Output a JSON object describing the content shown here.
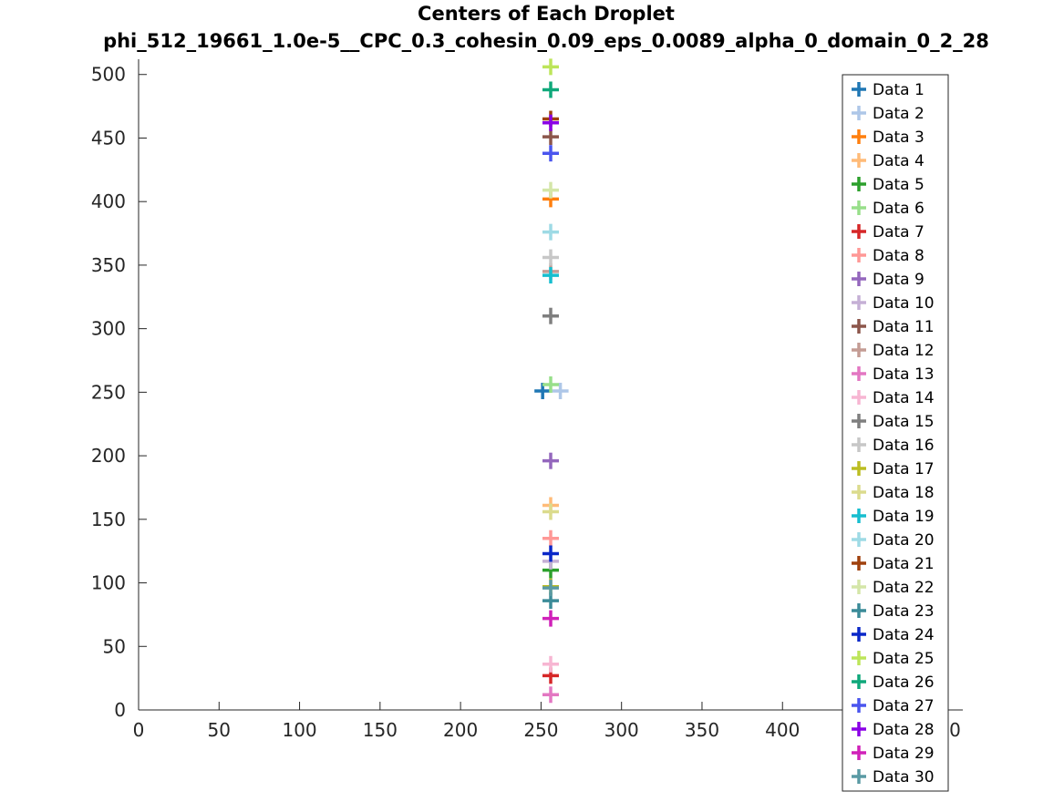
{
  "chart_data": {
    "type": "scatter",
    "title": "Centers of Each Droplet",
    "subtitle": "phi_512_19661_1.0e-5__CPC_0.3_cohesin_0.09_eps_0.0089_alpha_0_domain_0_2_28",
    "xlabel": "",
    "ylabel": "",
    "xlim": [
      0,
      512
    ],
    "ylim": [
      0,
      512
    ],
    "x_ticks": [
      0,
      50,
      100,
      150,
      200,
      250,
      300,
      350,
      400,
      450,
      500
    ],
    "x_tick_labels": [
      "0",
      "50",
      "100",
      "150",
      "200",
      "250",
      "300",
      "350",
      "400",
      "450",
      "500"
    ],
    "y_ticks": [
      0,
      50,
      100,
      150,
      200,
      250,
      300,
      350,
      400,
      450,
      500
    ],
    "y_tick_labels": [
      "0",
      "50",
      "100",
      "150",
      "200",
      "250",
      "300",
      "350",
      "400",
      "450",
      "500"
    ],
    "grid": false,
    "legend_position": "right",
    "marker": "plus",
    "series": [
      {
        "name": "Data 1",
        "color": "#1f77b4",
        "x": [
          251
        ],
        "y": [
          251
        ]
      },
      {
        "name": "Data 2",
        "color": "#aec7e8",
        "x": [
          262
        ],
        "y": [
          251
        ]
      },
      {
        "name": "Data 3",
        "color": "#ff7f0e",
        "x": [
          256
        ],
        "y": [
          402
        ]
      },
      {
        "name": "Data 4",
        "color": "#ffbb78",
        "x": [
          256
        ],
        "y": [
          161
        ]
      },
      {
        "name": "Data 5",
        "color": "#2ca02c",
        "x": [
          256
        ],
        "y": [
          110
        ]
      },
      {
        "name": "Data 6",
        "color": "#98df8a",
        "x": [
          256
        ],
        "y": [
          256
        ]
      },
      {
        "name": "Data 7",
        "color": "#d62728",
        "x": [
          256
        ],
        "y": [
          27
        ]
      },
      {
        "name": "Data 8",
        "color": "#ff9896",
        "x": [
          256
        ],
        "y": [
          135
        ]
      },
      {
        "name": "Data 9",
        "color": "#9467bd",
        "x": [
          256
        ],
        "y": [
          196
        ]
      },
      {
        "name": "Data 10",
        "color": "#c5b0d5",
        "x": [
          256
        ],
        "y": [
          117
        ]
      },
      {
        "name": "Data 11",
        "color": "#8c564b",
        "x": [
          256
        ],
        "y": [
          451
        ]
      },
      {
        "name": "Data 12",
        "color": "#c49c94",
        "x": [
          256
        ],
        "y": [
          345
        ]
      },
      {
        "name": "Data 13",
        "color": "#e377c2",
        "x": [
          256
        ],
        "y": [
          12
        ]
      },
      {
        "name": "Data 14",
        "color": "#f7b6d2",
        "x": [
          256
        ],
        "y": [
          36
        ]
      },
      {
        "name": "Data 15",
        "color": "#7f7f7f",
        "x": [
          256
        ],
        "y": [
          310
        ]
      },
      {
        "name": "Data 16",
        "color": "#c7c7c7",
        "x": [
          256
        ],
        "y": [
          356
        ]
      },
      {
        "name": "Data 17",
        "color": "#bcbd22",
        "x": [
          256
        ],
        "y": [
          97
        ]
      },
      {
        "name": "Data 18",
        "color": "#dbdb8d",
        "x": [
          256
        ],
        "y": [
          156
        ]
      },
      {
        "name": "Data 19",
        "color": "#17becf",
        "x": [
          256
        ],
        "y": [
          342
        ]
      },
      {
        "name": "Data 20",
        "color": "#9edae5",
        "x": [
          256
        ],
        "y": [
          376
        ]
      },
      {
        "name": "Data 21",
        "color": "#a0410d",
        "x": [
          256
        ],
        "y": [
          465
        ]
      },
      {
        "name": "Data 22",
        "color": "#d4e6a8",
        "x": [
          256
        ],
        "y": [
          409
        ]
      },
      {
        "name": "Data 23",
        "color": "#3b8b98",
        "x": [
          256
        ],
        "y": [
          86
        ]
      },
      {
        "name": "Data 24",
        "color": "#0a28c8",
        "x": [
          256
        ],
        "y": [
          123
        ]
      },
      {
        "name": "Data 25",
        "color": "#bde55a",
        "x": [
          256
        ],
        "y": [
          506
        ]
      },
      {
        "name": "Data 26",
        "color": "#0fa87a",
        "x": [
          256
        ],
        "y": [
          488
        ]
      },
      {
        "name": "Data 27",
        "color": "#4a55ee",
        "x": [
          256
        ],
        "y": [
          438
        ]
      },
      {
        "name": "Data 28",
        "color": "#8a00e6",
        "x": [
          256
        ],
        "y": [
          462
        ]
      },
      {
        "name": "Data 29",
        "color": "#d021b9",
        "x": [
          256
        ],
        "y": [
          72
        ]
      },
      {
        "name": "Data 30",
        "color": "#5a9aa4",
        "x": [
          256
        ],
        "y": [
          96
        ]
      }
    ]
  }
}
